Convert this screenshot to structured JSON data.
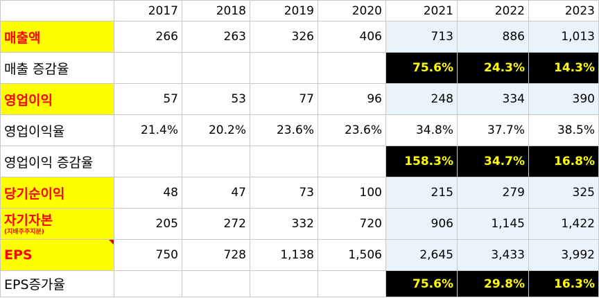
{
  "columns": [
    "2017",
    "2018",
    "2019",
    "2020",
    "2021",
    "2022",
    "2023"
  ],
  "rows": [
    {
      "label": "매출액",
      "values": [
        "266",
        "263",
        "326",
        "406",
        "713",
        "886",
        "1,013"
      ]
    },
    {
      "label": "매출 증감율",
      "values": [
        "",
        "",
        "",
        "",
        "75.6%",
        "24.3%",
        "14.3%"
      ]
    },
    {
      "label": "영업이익",
      "values": [
        "57",
        "53",
        "77",
        "96",
        "248",
        "334",
        "390"
      ]
    },
    {
      "label": "영업이익율",
      "values": [
        "21.4%",
        "20.2%",
        "23.6%",
        "23.6%",
        "34.8%",
        "37.7%",
        "38.5%"
      ]
    },
    {
      "label": "영업이익 증감율",
      "values": [
        "",
        "",
        "",
        "",
        "158.3%",
        "34.7%",
        "16.8%"
      ]
    },
    {
      "label": "당기순이익",
      "values": [
        "48",
        "47",
        "73",
        "100",
        "215",
        "279",
        "325"
      ]
    },
    {
      "label": "자기자본",
      "sublabel": "(지배주주지분)",
      "values": [
        "205",
        "272",
        "332",
        "720",
        "906",
        "1,145",
        "1,422"
      ]
    },
    {
      "label": "EPS",
      "values": [
        "750",
        "728",
        "1,138",
        "1,506",
        "2,645",
        "3,433",
        "3,992"
      ]
    },
    {
      "label": "EPS증가율",
      "values": [
        "",
        "",
        "",
        "",
        "75.6%",
        "29.8%",
        "16.3%"
      ]
    }
  ],
  "colors": {
    "label_highlight_bg": "#ffff00",
    "label_highlight_text": "#ff0000",
    "projection_bg": "#e8f3fa",
    "growth_bg": "#000000",
    "growth_text": "#ffff00"
  }
}
